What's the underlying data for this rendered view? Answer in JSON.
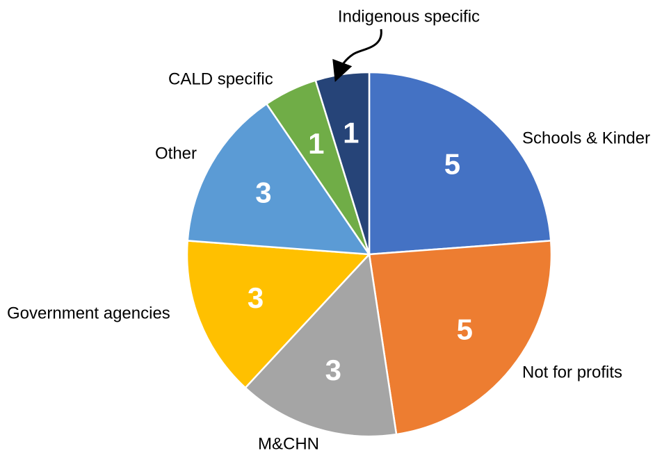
{
  "chart_data": {
    "type": "pie",
    "categories": [
      "Schools & Kinder",
      "Not for profits",
      "M&CHN",
      "Government agencies",
      "Other",
      "CALD specific",
      "Indigenous specific"
    ],
    "values": [
      5,
      5,
      3,
      3,
      3,
      1,
      1
    ],
    "colors": [
      "#4472c4",
      "#ed7d31",
      "#a5a5a5",
      "#ffc000",
      "#5b9bd5",
      "#70ad47",
      "#264478"
    ]
  }
}
